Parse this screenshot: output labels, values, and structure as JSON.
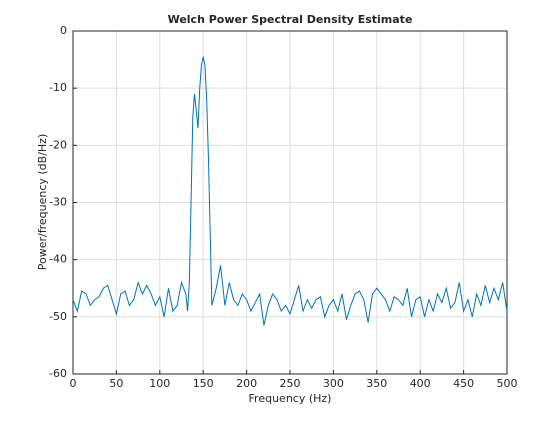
{
  "chart_data": {
    "type": "line",
    "title": "Welch Power Spectral Density Estimate",
    "xlabel": "Frequency (Hz)",
    "ylabel": "Power/frequency (dB/Hz)",
    "x": [
      0,
      5,
      10,
      15,
      20,
      25,
      30,
      35,
      40,
      45,
      50,
      55,
      60,
      65,
      70,
      75,
      80,
      85,
      90,
      95,
      100,
      105,
      110,
      115,
      120,
      125,
      130,
      132,
      134,
      136,
      138,
      140,
      142,
      144,
      146,
      148,
      150,
      152,
      154,
      156,
      158,
      160,
      165,
      170,
      175,
      180,
      185,
      190,
      195,
      200,
      205,
      210,
      215,
      220,
      225,
      230,
      235,
      240,
      245,
      250,
      255,
      260,
      265,
      270,
      275,
      280,
      285,
      290,
      295,
      300,
      305,
      310,
      315,
      320,
      325,
      330,
      335,
      340,
      345,
      350,
      355,
      360,
      365,
      370,
      375,
      380,
      385,
      390,
      395,
      400,
      405,
      410,
      415,
      420,
      425,
      430,
      435,
      440,
      445,
      450,
      455,
      460,
      465,
      470,
      475,
      480,
      485,
      490,
      495,
      500
    ],
    "series": [
      {
        "color": "#0072bd",
        "values": [
          -47,
          -49,
          -45.5,
          -46,
          -48,
          -47,
          -46.5,
          -45,
          -44.5,
          -47,
          -49.5,
          -46,
          -45.5,
          -48,
          -47,
          -44,
          -46,
          -44.5,
          -46,
          -48,
          -46.5,
          -50,
          -45,
          -49,
          -48,
          -44,
          -46,
          -49,
          -44,
          -30,
          -15,
          -11,
          -14,
          -17,
          -10,
          -6,
          -4.5,
          -6,
          -12,
          -22,
          -35,
          -48,
          -45,
          -41,
          -48,
          -44,
          -47,
          -48,
          -46,
          -47,
          -49,
          -47.5,
          -46,
          -51.5,
          -48,
          -46,
          -47,
          -49,
          -48,
          -49.5,
          -47,
          -44.5,
          -49,
          -47,
          -48.5,
          -47,
          -46.5,
          -50,
          -48,
          -47,
          -49,
          -46,
          -50.5,
          -48,
          -46,
          -45.5,
          -47,
          -51,
          -46,
          -45,
          -46,
          -47,
          -49,
          -46.5,
          -47,
          -48,
          -45,
          -50,
          -47,
          -46.5,
          -50,
          -47,
          -49,
          -46,
          -47.5,
          -45,
          -48.5,
          -47.5,
          -44,
          -49,
          -47,
          -50,
          -46,
          -48,
          -44.5,
          -47.5,
          -45,
          -47,
          -44,
          -49
        ]
      }
    ],
    "xlim": [
      0,
      500
    ],
    "xticks": [
      0,
      50,
      100,
      150,
      200,
      250,
      300,
      350,
      400,
      450,
      500
    ],
    "ylim": [
      -60,
      0
    ],
    "yticks": [
      -60,
      -50,
      -40,
      -30,
      -20,
      -10,
      0
    ],
    "grid": true
  }
}
